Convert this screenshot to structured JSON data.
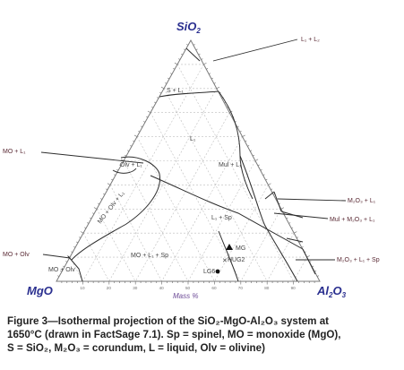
{
  "vertices": {
    "top": "SiO",
    "top_sub": "2",
    "left": "MgO",
    "right": "Al",
    "right_sub": "2",
    "right_tail": "O",
    "right_sub2": "3"
  },
  "axis_label": "Mass %",
  "bottom_ticks": [
    "10",
    "20",
    "30",
    "40",
    "50",
    "60",
    "70",
    "80",
    "90"
  ],
  "outside_labels": {
    "l1_l2": "L₁ + L₂",
    "mo_l1": "MO + L₁",
    "m2o3_l1": "M₂O₃ + L₁",
    "mul_m2o3_l1": "Mul + M₂O₃ + L₁",
    "mo_olv": "MO + Olv",
    "m2o3_l1_sp": "M₂O₃ + L₁ + Sp"
  },
  "region_labels": {
    "s_l1": "S + L₁",
    "l1": "L₁",
    "olv_l1": "Olv + L₁",
    "mul_l1": "Mul + L₁",
    "mo_olv_l1": "MO + Olv + L₁",
    "l1_sp": "L₁ + Sp",
    "mo_l1_sp": "MO + L₁ + Sp",
    "mo_olv_small": "MO + Olv"
  },
  "points": {
    "mg": "MG",
    "hug2": "HUG2",
    "lg6": "LG6"
  },
  "caption": [
    "Figure 3—Isothermal projection of the SiO₂-MgO-Al₂O₃ system at",
    "1650°C (drawn in FactSage 7.1). Sp = spinel, MO = monoxide (MgO),",
    "S = SiO₂, M₂O₃ = corundum, L = liquid, Olv = olivine)"
  ]
}
